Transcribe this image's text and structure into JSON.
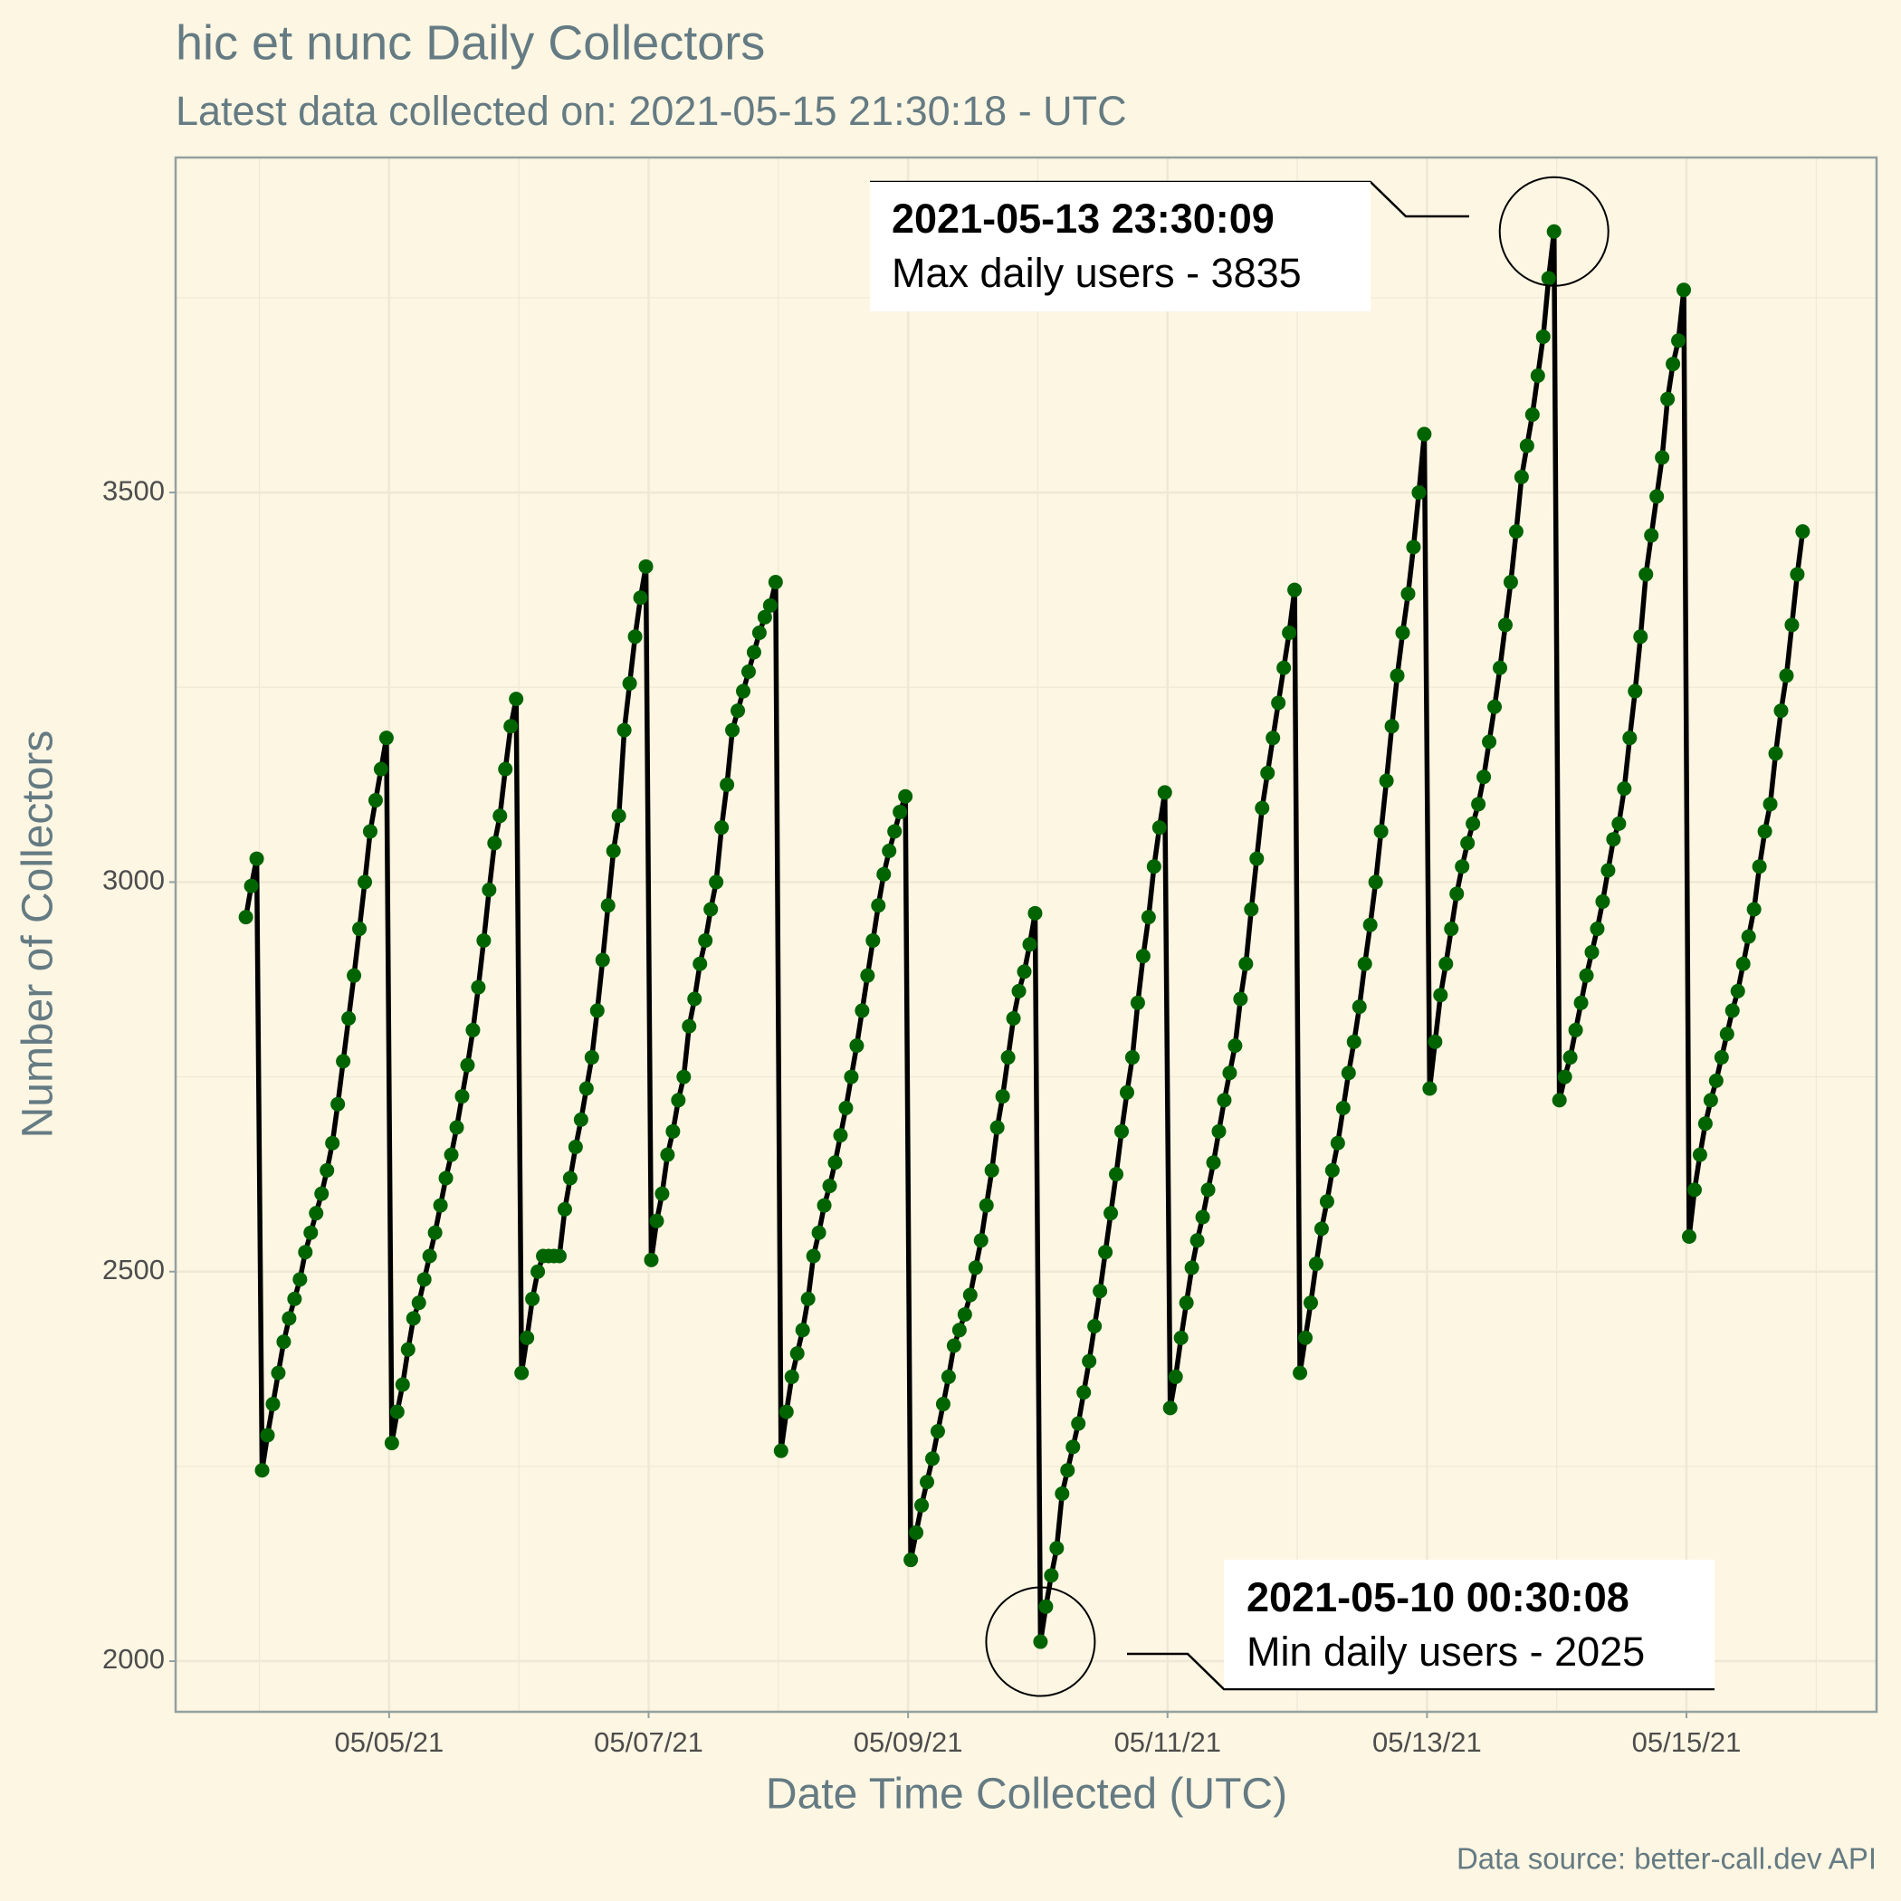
{
  "chart_data": {
    "type": "line",
    "title": "hic et nunc Daily Collectors",
    "subtitle": "Latest data collected on: 2021-05-15 21:30:18  - UTC",
    "x_label": "Date Time Collected (UTC)",
    "y_label": "Number of Collectors",
    "caption": "Data source: better-call.dev API",
    "xlim": [
      "2021-05-03 08:30",
      "2021-05-16 11:10"
    ],
    "xticks": [
      {
        "value": "2021-05-05 00:00",
        "label": "05/05/21"
      },
      {
        "value": "2021-05-07 00:00",
        "label": "05/07/21"
      },
      {
        "value": "2021-05-09 00:00",
        "label": "05/09/21"
      },
      {
        "value": "2021-05-11 00:00",
        "label": "05/11/21"
      },
      {
        "value": "2021-05-13 00:00",
        "label": "05/13/21"
      },
      {
        "value": "2021-05-15 00:00",
        "label": "05/15/21"
      }
    ],
    "ylim": [
      1935,
      3930
    ],
    "yticks": [
      2000,
      2500,
      3000,
      3500
    ],
    "grid": true,
    "x": [
      "2021-05-03 21:30",
      "2021-05-03 22:30",
      "2021-05-03 23:30",
      "2021-05-04 00:30",
      "2021-05-04 01:30",
      "2021-05-04 02:30",
      "2021-05-04 03:30",
      "2021-05-04 04:30",
      "2021-05-04 05:30",
      "2021-05-04 06:30",
      "2021-05-04 07:30",
      "2021-05-04 08:30",
      "2021-05-04 09:30",
      "2021-05-04 10:30",
      "2021-05-04 11:30",
      "2021-05-04 12:30",
      "2021-05-04 13:30",
      "2021-05-04 14:30",
      "2021-05-04 15:30",
      "2021-05-04 16:30",
      "2021-05-04 17:30",
      "2021-05-04 18:30",
      "2021-05-04 19:30",
      "2021-05-04 20:30",
      "2021-05-04 21:30",
      "2021-05-04 22:30",
      "2021-05-04 23:30",
      "2021-05-05 00:30",
      "2021-05-05 01:30",
      "2021-05-05 02:30",
      "2021-05-05 03:30",
      "2021-05-05 04:30",
      "2021-05-05 05:30",
      "2021-05-05 06:30",
      "2021-05-05 07:30",
      "2021-05-05 08:30",
      "2021-05-05 09:30",
      "2021-05-05 10:30",
      "2021-05-05 11:30",
      "2021-05-05 12:30",
      "2021-05-05 13:30",
      "2021-05-05 14:30",
      "2021-05-05 15:30",
      "2021-05-05 16:30",
      "2021-05-05 17:30",
      "2021-05-05 18:30",
      "2021-05-05 19:30",
      "2021-05-05 20:30",
      "2021-05-05 21:30",
      "2021-05-05 22:30",
      "2021-05-05 23:30",
      "2021-05-06 00:30",
      "2021-05-06 01:30",
      "2021-05-06 02:30",
      "2021-05-06 03:30",
      "2021-05-06 04:30",
      "2021-05-06 05:30",
      "2021-05-06 06:30",
      "2021-05-06 07:30",
      "2021-05-06 08:30",
      "2021-05-06 09:30",
      "2021-05-06 10:30",
      "2021-05-06 11:30",
      "2021-05-06 12:30",
      "2021-05-06 13:30",
      "2021-05-06 14:30",
      "2021-05-06 15:30",
      "2021-05-06 16:30",
      "2021-05-06 17:30",
      "2021-05-06 18:30",
      "2021-05-06 19:30",
      "2021-05-06 20:30",
      "2021-05-06 21:30",
      "2021-05-06 22:30",
      "2021-05-06 23:30",
      "2021-05-07 00:30",
      "2021-05-07 01:30",
      "2021-05-07 02:30",
      "2021-05-07 03:30",
      "2021-05-07 04:30",
      "2021-05-07 05:30",
      "2021-05-07 06:30",
      "2021-05-07 07:30",
      "2021-05-07 08:30",
      "2021-05-07 09:30",
      "2021-05-07 10:30",
      "2021-05-07 11:30",
      "2021-05-07 12:30",
      "2021-05-07 13:30",
      "2021-05-07 14:30",
      "2021-05-07 15:30",
      "2021-05-07 16:30",
      "2021-05-07 17:30",
      "2021-05-07 18:30",
      "2021-05-07 19:30",
      "2021-05-07 20:30",
      "2021-05-07 21:30",
      "2021-05-07 22:30",
      "2021-05-07 23:30",
      "2021-05-08 00:30",
      "2021-05-08 01:30",
      "2021-05-08 02:30",
      "2021-05-08 03:30",
      "2021-05-08 04:30",
      "2021-05-08 05:30",
      "2021-05-08 06:30",
      "2021-05-08 07:30",
      "2021-05-08 08:30",
      "2021-05-08 09:30",
      "2021-05-08 10:30",
      "2021-05-08 11:30",
      "2021-05-08 12:30",
      "2021-05-08 13:30",
      "2021-05-08 14:30",
      "2021-05-08 15:30",
      "2021-05-08 16:30",
      "2021-05-08 17:30",
      "2021-05-08 18:30",
      "2021-05-08 19:30",
      "2021-05-08 20:30",
      "2021-05-08 21:30",
      "2021-05-08 22:30",
      "2021-05-08 23:30",
      "2021-05-09 00:30",
      "2021-05-09 01:30",
      "2021-05-09 02:30",
      "2021-05-09 03:30",
      "2021-05-09 04:30",
      "2021-05-09 05:30",
      "2021-05-09 06:30",
      "2021-05-09 07:30",
      "2021-05-09 08:30",
      "2021-05-09 09:30",
      "2021-05-09 10:30",
      "2021-05-09 11:30",
      "2021-05-09 12:30",
      "2021-05-09 13:30",
      "2021-05-09 14:30",
      "2021-05-09 15:30",
      "2021-05-09 16:30",
      "2021-05-09 17:30",
      "2021-05-09 18:30",
      "2021-05-09 19:30",
      "2021-05-09 20:30",
      "2021-05-09 21:30",
      "2021-05-09 22:30",
      "2021-05-09 23:30",
      "2021-05-10 00:30",
      "2021-05-10 01:30",
      "2021-05-10 02:30",
      "2021-05-10 03:30",
      "2021-05-10 04:30",
      "2021-05-10 05:30",
      "2021-05-10 06:30",
      "2021-05-10 07:30",
      "2021-05-10 08:30",
      "2021-05-10 09:30",
      "2021-05-10 10:30",
      "2021-05-10 11:30",
      "2021-05-10 12:30",
      "2021-05-10 13:30",
      "2021-05-10 14:30",
      "2021-05-10 15:30",
      "2021-05-10 16:30",
      "2021-05-10 17:30",
      "2021-05-10 18:30",
      "2021-05-10 19:30",
      "2021-05-10 20:30",
      "2021-05-10 21:30",
      "2021-05-10 22:30",
      "2021-05-10 23:30",
      "2021-05-11 00:30",
      "2021-05-11 01:30",
      "2021-05-11 02:30",
      "2021-05-11 03:30",
      "2021-05-11 04:30",
      "2021-05-11 05:30",
      "2021-05-11 06:30",
      "2021-05-11 07:30",
      "2021-05-11 08:30",
      "2021-05-11 09:30",
      "2021-05-11 10:30",
      "2021-05-11 11:30",
      "2021-05-11 12:30",
      "2021-05-11 13:30",
      "2021-05-11 14:30",
      "2021-05-11 15:30",
      "2021-05-11 16:30",
      "2021-05-11 17:30",
      "2021-05-11 18:30",
      "2021-05-11 19:30",
      "2021-05-11 20:30",
      "2021-05-11 21:30",
      "2021-05-11 22:30",
      "2021-05-11 23:30",
      "2021-05-12 00:30",
      "2021-05-12 01:30",
      "2021-05-12 02:30",
      "2021-05-12 03:30",
      "2021-05-12 04:30",
      "2021-05-12 05:30",
      "2021-05-12 06:30",
      "2021-05-12 07:30",
      "2021-05-12 08:30",
      "2021-05-12 09:30",
      "2021-05-12 10:30",
      "2021-05-12 11:30",
      "2021-05-12 12:30",
      "2021-05-12 13:30",
      "2021-05-12 14:30",
      "2021-05-12 15:30",
      "2021-05-12 16:30",
      "2021-05-12 17:30",
      "2021-05-12 18:30",
      "2021-05-12 19:30",
      "2021-05-12 20:30",
      "2021-05-12 21:30",
      "2021-05-12 22:30",
      "2021-05-12 23:30",
      "2021-05-13 00:30",
      "2021-05-13 01:30",
      "2021-05-13 02:30",
      "2021-05-13 03:30",
      "2021-05-13 04:30",
      "2021-05-13 05:30",
      "2021-05-13 06:30",
      "2021-05-13 07:30",
      "2021-05-13 08:30",
      "2021-05-13 09:30",
      "2021-05-13 10:30",
      "2021-05-13 11:30",
      "2021-05-13 12:30",
      "2021-05-13 13:30",
      "2021-05-13 14:30",
      "2021-05-13 15:30",
      "2021-05-13 16:30",
      "2021-05-13 17:30",
      "2021-05-13 18:30",
      "2021-05-13 19:30",
      "2021-05-13 20:30",
      "2021-05-13 21:30",
      "2021-05-13 22:30",
      "2021-05-13 23:30",
      "2021-05-14 00:30",
      "2021-05-14 01:30",
      "2021-05-14 02:30",
      "2021-05-14 03:30",
      "2021-05-14 04:30",
      "2021-05-14 05:30",
      "2021-05-14 06:30",
      "2021-05-14 07:30",
      "2021-05-14 08:30",
      "2021-05-14 09:30",
      "2021-05-14 10:30",
      "2021-05-14 11:30",
      "2021-05-14 12:30",
      "2021-05-14 13:30",
      "2021-05-14 14:30",
      "2021-05-14 15:30",
      "2021-05-14 16:30",
      "2021-05-14 17:30",
      "2021-05-14 18:30",
      "2021-05-14 19:30",
      "2021-05-14 20:30",
      "2021-05-14 21:30",
      "2021-05-14 22:30",
      "2021-05-14 23:30",
      "2021-05-15 00:30",
      "2021-05-15 01:30",
      "2021-05-15 02:30",
      "2021-05-15 03:30",
      "2021-05-15 04:30",
      "2021-05-15 05:30",
      "2021-05-15 06:30",
      "2021-05-15 07:30",
      "2021-05-15 08:30",
      "2021-05-15 09:30",
      "2021-05-15 10:30",
      "2021-05-15 11:30",
      "2021-05-15 12:30",
      "2021-05-15 13:30",
      "2021-05-15 14:30",
      "2021-05-15 15:30",
      "2021-05-15 16:30",
      "2021-05-15 17:30",
      "2021-05-15 18:30",
      "2021-05-15 19:30",
      "2021-05-15 20:30",
      "2021-05-15 21:30"
    ],
    "series": [
      {
        "color": "#006400",
        "line_color": "#000000",
        "values": [
          2955,
          2995,
          3030,
          2245,
          2290,
          2330,
          2370,
          2410,
          2440,
          2465,
          2490,
          2525,
          2550,
          2575,
          2600,
          2630,
          2665,
          2715,
          2770,
          2825,
          2880,
          2940,
          3000,
          3065,
          3105,
          3145,
          3185,
          2280,
          2320,
          2355,
          2400,
          2440,
          2460,
          2490,
          2520,
          2550,
          2585,
          2620,
          2650,
          2685,
          2725,
          2765,
          2810,
          2865,
          2925,
          2990,
          3050,
          3085,
          3145,
          3200,
          3235,
          2370,
          2415,
          2465,
          2500,
          2520,
          2520,
          2520,
          2520,
          2580,
          2620,
          2660,
          2695,
          2735,
          2775,
          2835,
          2900,
          2970,
          3040,
          3085,
          3195,
          3255,
          3315,
          3365,
          3405,
          2515,
          2565,
          2600,
          2650,
          2680,
          2720,
          2750,
          2815,
          2850,
          2895,
          2925,
          2965,
          3000,
          3070,
          3125,
          3195,
          3220,
          3245,
          3270,
          3295,
          3320,
          3340,
          3355,
          3385,
          2270,
          2320,
          2365,
          2395,
          2425,
          2465,
          2520,
          2550,
          2585,
          2610,
          2640,
          2675,
          2710,
          2750,
          2790,
          2835,
          2880,
          2925,
          2970,
          3010,
          3040,
          3065,
          3090,
          3110,
          2130,
          2165,
          2200,
          2230,
          2260,
          2295,
          2330,
          2365,
          2405,
          2425,
          2445,
          2470,
          2505,
          2540,
          2585,
          2630,
          2685,
          2725,
          2775,
          2825,
          2860,
          2885,
          2920,
          2960,
          2025,
          2070,
          2110,
          2145,
          2215,
          2245,
          2275,
          2305,
          2345,
          2385,
          2430,
          2475,
          2525,
          2575,
          2625,
          2680,
          2730,
          2775,
          2845,
          2905,
          2955,
          3020,
          3070,
          3115,
          2325,
          2365,
          2415,
          2460,
          2505,
          2540,
          2570,
          2605,
          2640,
          2680,
          2720,
          2755,
          2790,
          2850,
          2895,
          2965,
          3030,
          3095,
          3140,
          3185,
          3230,
          3275,
          3320,
          3375,
          2370,
          2415,
          2460,
          2510,
          2555,
          2590,
          2630,
          2665,
          2710,
          2755,
          2795,
          2840,
          2895,
          2945,
          3000,
          3065,
          3130,
          3200,
          3265,
          3320,
          3370,
          3430,
          3500,
          3575,
          2735,
          2795,
          2855,
          2895,
          2940,
          2985,
          3020,
          3050,
          3075,
          3100,
          3135,
          3180,
          3225,
          3275,
          3330,
          3385,
          3450,
          3520,
          3560,
          3600,
          3650,
          3700,
          3775,
          3835,
          2720,
          2750,
          2775,
          2810,
          2845,
          2880,
          2910,
          2940,
          2975,
          3015,
          3055,
          3075,
          3120,
          3185,
          3245,
          3315,
          3395,
          3445,
          3495,
          3545,
          3620,
          3665,
          3695,
          3760,
          2545,
          2605,
          2650,
          2690,
          2720,
          2745,
          2775,
          2805,
          2835,
          2860,
          2895,
          2930,
          2965,
          3020,
          3065,
          3100,
          3165,
          3220,
          3265,
          3330,
          3395,
          3450
        ]
      }
    ],
    "annotations": [
      {
        "title": "2021-05-13 23:30:09",
        "text": "Max daily users - 3835"
      },
      {
        "title": "2021-05-10 00:30:08",
        "text": "Min daily users - 2025"
      }
    ]
  }
}
